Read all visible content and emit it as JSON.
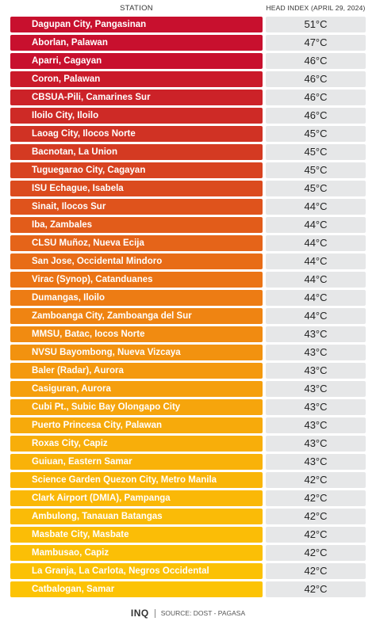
{
  "header": {
    "station_label": "STATION",
    "index_label": "HEAD INDEX (APRIL 29, 2024)"
  },
  "rows": [
    {
      "station": "Dagupan City, Pangasinan",
      "value": "51°C",
      "color": "#c8102e"
    },
    {
      "station": "Aborlan, Palawan",
      "value": "47°C",
      "color": "#c8102e"
    },
    {
      "station": "Aparri, Cagayan",
      "value": "46°C",
      "color": "#c8102e"
    },
    {
      "station": "Coron, Palawan",
      "value": "46°C",
      "color": "#ca1a2a"
    },
    {
      "station": "CBSUA-Pili, Camarines Sur",
      "value": "46°C",
      "color": "#cc2228"
    },
    {
      "station": "Iloilo City, Iloilo",
      "value": "46°C",
      "color": "#ce2a26"
    },
    {
      "station": "Laoag City, Ilocos Norte",
      "value": "45°C",
      "color": "#d03224"
    },
    {
      "station": "Bacnotan, La Union",
      "value": "45°C",
      "color": "#d43a22"
    },
    {
      "station": "Tuguegarao City, Cagayan",
      "value": "45°C",
      "color": "#d84320"
    },
    {
      "station": "ISU Echague, Isabela",
      "value": "45°C",
      "color": "#db4b1e"
    },
    {
      "station": "Sinait, Ilocos Sur",
      "value": "44°C",
      "color": "#df531c"
    },
    {
      "station": "Iba, Zambales",
      "value": "44°C",
      "color": "#e25c1a"
    },
    {
      "station": "CLSU Muñoz, Nueva Ecija",
      "value": "44°C",
      "color": "#e56419"
    },
    {
      "station": "San Jose, Occidental Mindoro",
      "value": "44°C",
      "color": "#e86c17"
    },
    {
      "station": "Virac (Synop), Catanduanes",
      "value": "44°C",
      "color": "#eb7415"
    },
    {
      "station": "Dumangas, Iloilo",
      "value": "44°C",
      "color": "#ed7c14"
    },
    {
      "station": "Zamboanga City, Zamboanga del Sur",
      "value": "44°C",
      "color": "#ef8412"
    },
    {
      "station": "MMSU, Batac, Iocos Norte",
      "value": "43°C",
      "color": "#f18b11"
    },
    {
      "station": "NVSU Bayombong, Nueva Vizcaya",
      "value": "43°C",
      "color": "#f2920f"
    },
    {
      "station": "Baler (Radar), Aurora",
      "value": "43°C",
      "color": "#f4990e"
    },
    {
      "station": "Casiguran, Aurora",
      "value": "43°C",
      "color": "#f59f0d"
    },
    {
      "station": "Cubi Pt., Subic Bay Olongapo City",
      "value": "43°C",
      "color": "#f6a50c"
    },
    {
      "station": "Puerto Princesa City, Palawan",
      "value": "43°C",
      "color": "#f7aa0b"
    },
    {
      "station": "Roxas City, Capiz",
      "value": "43°C",
      "color": "#f8ae0a"
    },
    {
      "station": "Guiuan, Eastern Samar",
      "value": "43°C",
      "color": "#f9b209"
    },
    {
      "station": "Science Garden Quezon City, Metro Manila",
      "value": "42°C",
      "color": "#f9b508"
    },
    {
      "station": "Clark Airport (DMIA), Pampanga",
      "value": "42°C",
      "color": "#fab807"
    },
    {
      "station": "Ambulong, Tanauan Batangas",
      "value": "42°C",
      "color": "#fabb07"
    },
    {
      "station": "Masbate City, Masbate",
      "value": "42°C",
      "color": "#fbbd06"
    },
    {
      "station": "Mambusao, Capiz",
      "value": "42°C",
      "color": "#fbbf06"
    },
    {
      "station": "La Granja, La Carlota, Negros Occidental",
      "value": "42°C",
      "color": "#fbc105"
    },
    {
      "station": "Catbalogan, Samar",
      "value": "42°C",
      "color": "#fcc305"
    }
  ],
  "footer": {
    "logo": "INQ",
    "source": "SOURCE: DOST - PAGASA"
  }
}
